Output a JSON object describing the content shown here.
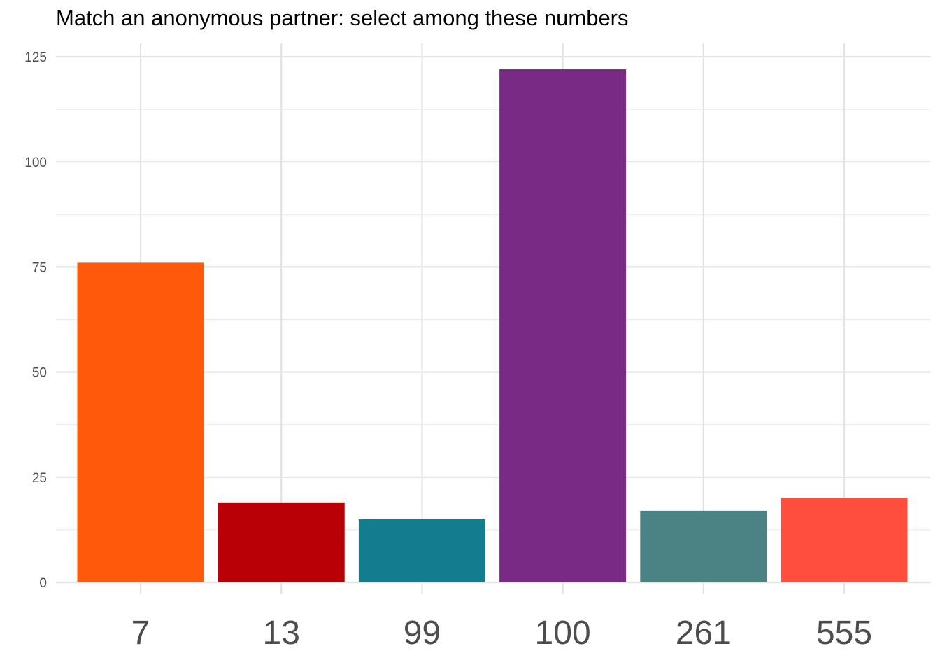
{
  "chart_data": {
    "type": "bar",
    "title": "Match an anonymous partner: select among these numbers",
    "xlabel": "",
    "ylabel": "",
    "categories": [
      "7",
      "13",
      "99",
      "100",
      "261",
      "555"
    ],
    "values": [
      76,
      19,
      15,
      122,
      17,
      20
    ],
    "colors": [
      "#FF5A0A",
      "#B80006",
      "#137D8F",
      "#772B84",
      "#4B8384",
      "#FF4E3E"
    ],
    "ylim": [
      0,
      125
    ],
    "yticks": [
      0,
      25,
      50,
      75,
      100,
      125
    ],
    "grid": true,
    "legend": "none"
  }
}
